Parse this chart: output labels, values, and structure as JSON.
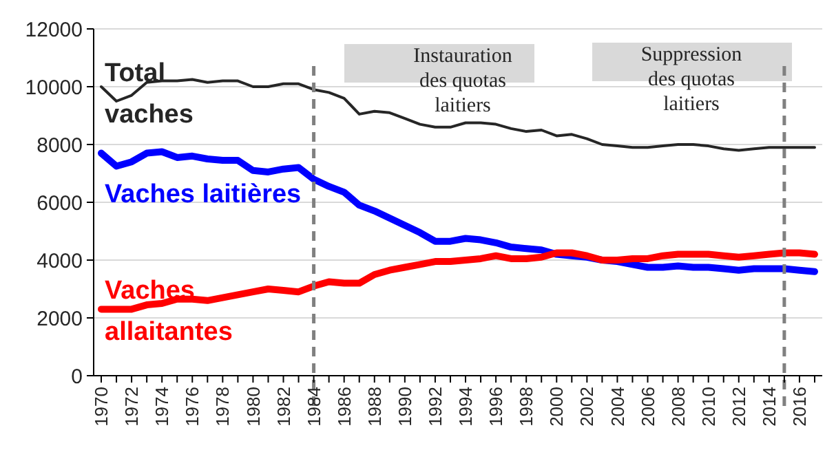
{
  "chart_data": {
    "type": "line",
    "x": [
      1970,
      1971,
      1972,
      1973,
      1974,
      1975,
      1976,
      1977,
      1978,
      1979,
      1980,
      1981,
      1982,
      1983,
      1984,
      1985,
      1986,
      1987,
      1988,
      1989,
      1990,
      1991,
      1992,
      1993,
      1994,
      1995,
      1996,
      1997,
      1998,
      1999,
      2000,
      2001,
      2002,
      2003,
      2004,
      2005,
      2006,
      2007,
      2008,
      2009,
      2010,
      2011,
      2012,
      2013,
      2014,
      2015,
      2016,
      2017
    ],
    "series": [
      {
        "name": "Total\nvaches",
        "color": "#262626",
        "values": [
          10000,
          9500,
          9700,
          10150,
          10200,
          10200,
          10250,
          10150,
          10200,
          10200,
          10000,
          10000,
          10100,
          10100,
          9900,
          9800,
          9600,
          9050,
          9150,
          9100,
          8900,
          8700,
          8600,
          8600,
          8750,
          8750,
          8700,
          8550,
          8450,
          8500,
          8300,
          8350,
          8200,
          8000,
          7950,
          7900,
          7900,
          7950,
          8000,
          8000,
          7950,
          7850,
          7800,
          7850,
          7900,
          7900,
          7900,
          7900
        ]
      },
      {
        "name": "Vaches laitières",
        "color": "#0000ff",
        "values": [
          7700,
          7250,
          7400,
          7700,
          7750,
          7550,
          7600,
          7500,
          7450,
          7450,
          7100,
          7050,
          7150,
          7200,
          6800,
          6550,
          6350,
          5900,
          5700,
          5450,
          5200,
          4950,
          4650,
          4650,
          4750,
          4700,
          4600,
          4450,
          4400,
          4350,
          4200,
          4150,
          4100,
          4000,
          3950,
          3850,
          3750,
          3750,
          3800,
          3750,
          3750,
          3700,
          3650,
          3700,
          3700,
          3700,
          3650,
          3600
        ]
      },
      {
        "name": "Vaches\nallaitantes",
        "color": "#ff0000",
        "values": [
          2300,
          2300,
          2300,
          2450,
          2500,
          2650,
          2650,
          2600,
          2700,
          2800,
          2900,
          3000,
          2950,
          2900,
          3100,
          3250,
          3200,
          3200,
          3500,
          3650,
          3750,
          3850,
          3950,
          3950,
          4000,
          4050,
          4150,
          4050,
          4050,
          4100,
          4250,
          4250,
          4150,
          4000,
          4000,
          4050,
          4050,
          4150,
          4200,
          4200,
          4200,
          4150,
          4100,
          4150,
          4200,
          4250,
          4250,
          4200
        ]
      }
    ],
    "xlim": [
      1969.5,
      2017.5
    ],
    "xticks": [
      1970,
      {
        "value": 1971,
        "label": null
      },
      1972,
      {
        "value": 1973,
        "label": null
      },
      1974,
      {
        "value": 1975,
        "label": null
      },
      1976,
      {
        "value": 1977,
        "label": null
      },
      1978,
      {
        "value": 1979,
        "label": null
      },
      1980,
      {
        "value": 1981,
        "label": null
      },
      1982,
      {
        "value": 1983,
        "label": null
      },
      1984,
      {
        "value": 1985,
        "label": null
      },
      1986,
      {
        "value": 1987,
        "label": null
      },
      1988,
      {
        "value": 1989,
        "label": null
      },
      1990,
      {
        "value": 1991,
        "label": null
      },
      1992,
      {
        "value": 1993,
        "label": null
      },
      1994,
      {
        "value": 1995,
        "label": null
      },
      1996,
      {
        "value": 1997,
        "label": null
      },
      1998,
      {
        "value": 1999,
        "label": null
      },
      2000,
      {
        "value": 2001,
        "label": null
      },
      2002,
      {
        "value": 2003,
        "label": null
      },
      2004,
      {
        "value": 2005,
        "label": null
      },
      2006,
      {
        "value": 2007,
        "label": null
      },
      2008,
      {
        "value": 2009,
        "label": null
      },
      2010,
      {
        "value": 2011,
        "label": null
      },
      2012,
      {
        "value": 2013,
        "label": null
      },
      2014,
      {
        "value": 2015,
        "label": null
      },
      2016,
      {
        "value": 2017,
        "label": null
      }
    ],
    "ylim": [
      0,
      12000
    ],
    "yticks": [
      0,
      2000,
      4000,
      6000,
      8000,
      10000,
      12000
    ],
    "grid": "y",
    "ref_lines": [
      {
        "axis": "x",
        "value": 1984,
        "color": "#808080",
        "line_style": "dashed"
      },
      {
        "axis": "x",
        "value": 2015,
        "color": "#808080",
        "line_style": "dashed"
      }
    ],
    "annotations": [
      "Instauration\ndes quotas\nlaitiers",
      "Suppression\ndes quotas\nlaitiers"
    ]
  }
}
